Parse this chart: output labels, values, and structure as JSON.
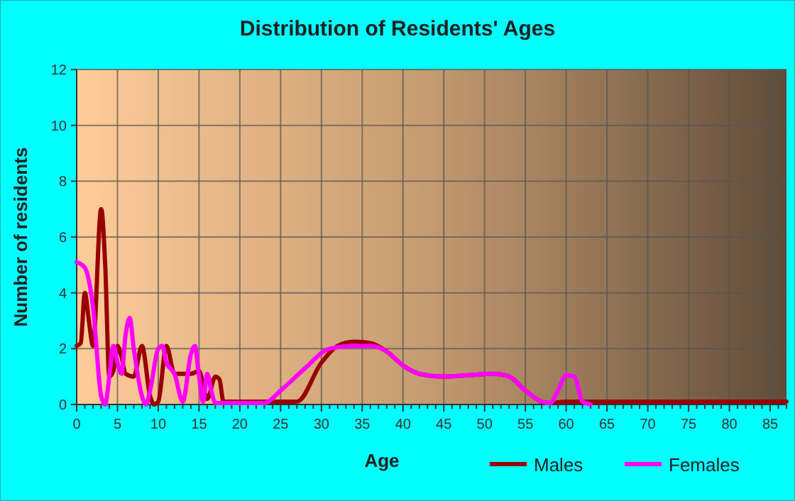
{
  "chart_data": {
    "type": "line",
    "title": "Distribution of Residents' Ages",
    "xlabel": "Age",
    "ylabel": "Number of residents",
    "xlim": [
      0,
      87
    ],
    "xticks": [
      0,
      5,
      10,
      15,
      20,
      25,
      30,
      35,
      40,
      45,
      50,
      55,
      60,
      65,
      70,
      75,
      80,
      85
    ],
    "ylim": [
      0,
      12
    ],
    "yticks": [
      0,
      2,
      4,
      6,
      8,
      10,
      12
    ],
    "grid": true,
    "legend": "bottom",
    "line_style": "solid",
    "marker": "none",
    "series": [
      {
        "name": "Males",
        "color": "#990000",
        "x": [
          0,
          0.5,
          1,
          1.5,
          2,
          3,
          3.5,
          4,
          4.5,
          5,
          5.5,
          6,
          7,
          8,
          9,
          9.5,
          10,
          11,
          12,
          13,
          14,
          15,
          16,
          17,
          17.5,
          18,
          20,
          25,
          27,
          30,
          32,
          34,
          36,
          38,
          40,
          42,
          45,
          48,
          51,
          53,
          55,
          57,
          58,
          60,
          87
        ],
        "values": [
          2.1,
          2.2,
          4,
          3,
          2.1,
          7,
          5,
          1,
          1.2,
          2.1,
          1.7,
          1.1,
          1,
          2.1,
          0.3,
          0,
          0.1,
          2.1,
          1.1,
          1.1,
          1.1,
          1.2,
          0.2,
          1,
          0.9,
          0.1,
          0.1,
          0.1,
          0.1,
          1.5,
          2.1,
          2.25,
          2.2,
          1.9,
          1.4,
          1.1,
          1,
          1.05,
          1.1,
          1,
          0.5,
          0.1,
          0.05,
          0.1,
          0.1
        ]
      },
      {
        "name": "Females",
        "color": "#ff00ff",
        "x": [
          0,
          1,
          2,
          3,
          3.5,
          4,
          4.5,
          5,
          5.5,
          6,
          6.5,
          7,
          8,
          8.5,
          9,
          10,
          10.5,
          11,
          12,
          13,
          14,
          14.5,
          15,
          15.5,
          16,
          16.5,
          17,
          18,
          23,
          25,
          28,
          31,
          34,
          36,
          38,
          40,
          42,
          45,
          48,
          51,
          53,
          55,
          57,
          58,
          59,
          60,
          61,
          62,
          63
        ],
        "values": [
          5.1,
          4.9,
          3.5,
          0.3,
          0,
          1,
          2.1,
          1.5,
          1.1,
          2.5,
          3.1,
          2,
          0.3,
          0,
          0.5,
          2,
          2.1,
          1.5,
          1.1,
          0.1,
          1.8,
          2.1,
          1,
          0.1,
          1.1,
          0.5,
          0.05,
          0.05,
          0.05,
          0.5,
          1.3,
          2,
          2.1,
          2.1,
          1.9,
          1.4,
          1.1,
          1,
          1.05,
          1.1,
          1,
          0.5,
          0.1,
          0.05,
          0.5,
          1.05,
          1,
          0.1,
          0
        ]
      }
    ]
  }
}
